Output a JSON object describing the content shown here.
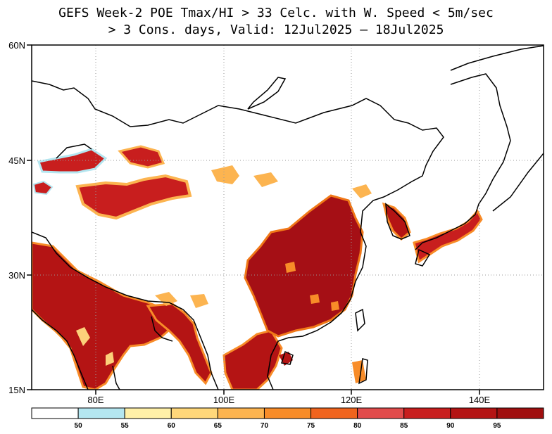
{
  "title": {
    "line1": "GEFS Week-2 POE Tmax/HI > 33 Celc. with W. Speed < 5m/sec",
    "line2": "> 3 Cons. days, Valid: 12Jul2025 – 18Jul2025"
  },
  "map": {
    "region": "East / South Asia",
    "lat_ticks": [
      "60N",
      "45N",
      "30N",
      "15N"
    ],
    "lon_ticks": [
      "80E",
      "100E",
      "120E",
      "140E"
    ],
    "gridlines": "dotted",
    "colors": {
      "coast": "#000000",
      "high_probability": "#a50f15",
      "mid_probability": "#f07818",
      "low_probability": "#fcd07a"
    }
  },
  "colorbar": {
    "labels": [
      "50",
      "55",
      "60",
      "65",
      "70",
      "75",
      "80",
      "85",
      "90",
      "95"
    ],
    "colors": [
      "#ffffff",
      "#b4e6f0",
      "#fff0a8",
      "#ffd77a",
      "#fcb450",
      "#f88c28",
      "#f0641e",
      "#e14b4b",
      "#c81e1e",
      "#b41414",
      "#a00f0f"
    ]
  }
}
